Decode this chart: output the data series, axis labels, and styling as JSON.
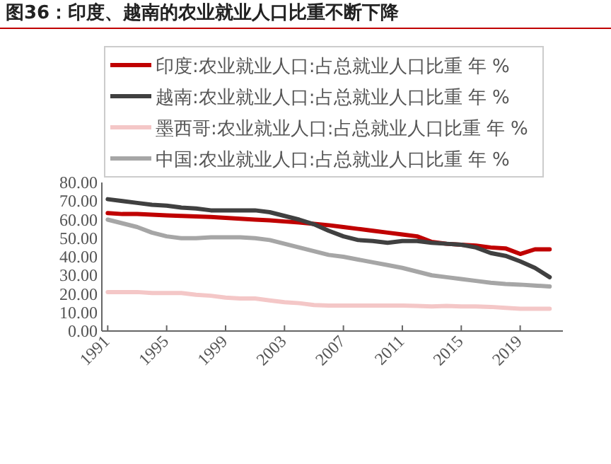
{
  "chart_data": {
    "type": "line",
    "title": "图36：印度、越南的农业就业人口比重不断下降",
    "x": [
      1991,
      1992,
      1993,
      1994,
      1995,
      1996,
      1997,
      1998,
      1999,
      2000,
      2001,
      2002,
      2003,
      2004,
      2005,
      2006,
      2007,
      2008,
      2009,
      2010,
      2011,
      2012,
      2013,
      2014,
      2015,
      2016,
      2017,
      2018,
      2019,
      2020,
      2021
    ],
    "series": [
      {
        "name": "印度:农业就业人口:占总就业人口比重 年 %",
        "color": "#c00000",
        "values": [
          63.5,
          63,
          63,
          62.7,
          62.3,
          62,
          61.7,
          61.4,
          61,
          60.5,
          60,
          59.6,
          59,
          58.5,
          57.7,
          57,
          56,
          55,
          54,
          53,
          52,
          51,
          48,
          47,
          46.5,
          46,
          45,
          44.5,
          41.5,
          44,
          44
        ]
      },
      {
        "name": "越南:农业就业人口:占总就业人口比重 年 %",
        "color": "#404040",
        "values": [
          71,
          70,
          69,
          68,
          67.5,
          66.5,
          66,
          65,
          65,
          65,
          65,
          64,
          62,
          60,
          57.5,
          54,
          51,
          49,
          48.5,
          47.5,
          48.5,
          48.5,
          47.5,
          47,
          46.5,
          45,
          42,
          40.5,
          37.5,
          34,
          29
        ]
      },
      {
        "name": "墨西哥:农业就业人口:占总就业人口比重 年 %",
        "color": "#f4c7c7",
        "values": [
          21,
          21,
          21,
          20.5,
          20.5,
          20.5,
          19.5,
          19,
          18,
          17.5,
          17.5,
          16.5,
          15.5,
          15,
          14,
          13.7,
          13.7,
          13.7,
          13.7,
          13.7,
          13.7,
          13.5,
          13.2,
          13.5,
          13.2,
          13.2,
          13,
          12.5,
          12,
          12,
          12
        ]
      },
      {
        "name": "中国:农业就业人口:占总就业人口比重 年 %",
        "color": "#a6a6a6",
        "values": [
          60,
          58,
          56,
          53,
          51,
          50,
          50,
          50.5,
          50.5,
          50.5,
          50,
          49,
          47,
          45,
          43,
          41,
          40,
          38.5,
          37,
          35.5,
          34,
          32,
          30,
          29,
          28,
          27,
          26,
          25.3,
          25,
          24.5,
          24
        ]
      }
    ],
    "xlim": [
      1990.6,
      2021.9
    ],
    "xticks": [
      1991,
      1995,
      1999,
      2003,
      2007,
      2011,
      2015,
      2019
    ],
    "ylim": [
      0,
      80
    ],
    "yticks": [
      {
        "value": 0,
        "label": "0.00"
      },
      {
        "value": 10,
        "label": "10.00"
      },
      {
        "value": 20,
        "label": "20.00"
      },
      {
        "value": 30,
        "label": "30.00"
      },
      {
        "value": 40,
        "label": "40.00"
      },
      {
        "value": 50,
        "label": "50.00"
      },
      {
        "value": 60,
        "label": "60.00"
      },
      {
        "value": 70,
        "label": "70.00"
      },
      {
        "value": 80,
        "label": "80.00"
      }
    ],
    "grid": false,
    "legend": "top",
    "marker": "none",
    "line_style": "solid"
  }
}
